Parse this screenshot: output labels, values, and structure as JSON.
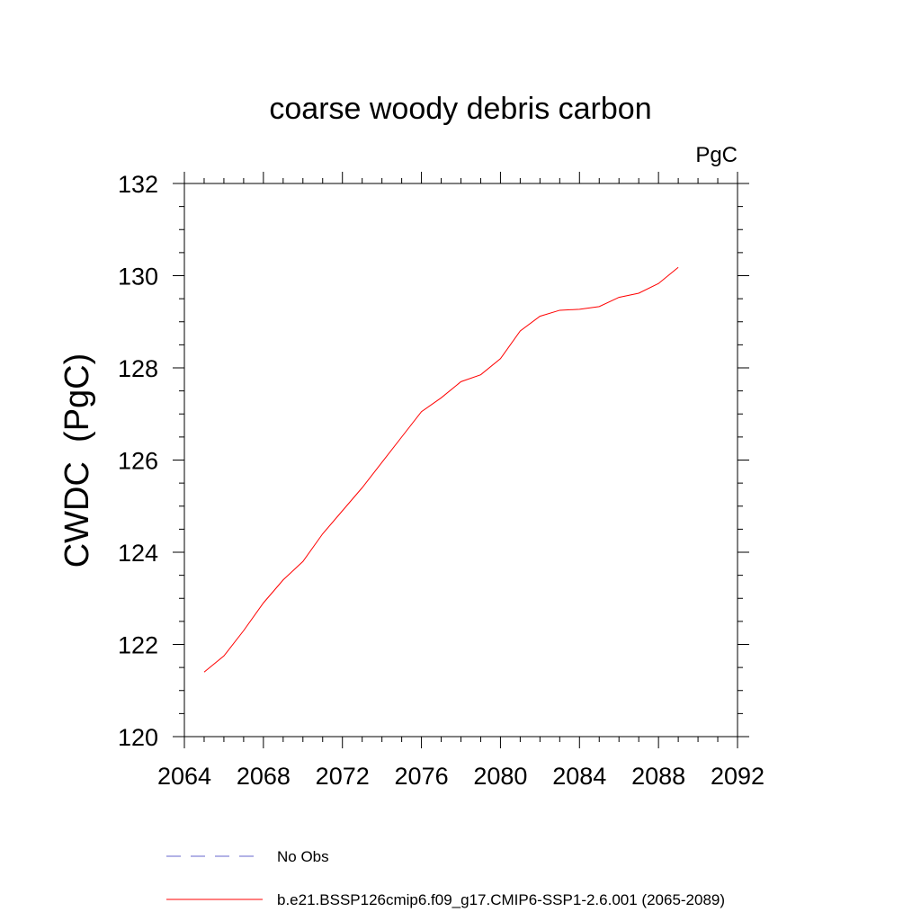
{
  "chart_data": {
    "type": "line",
    "title": "coarse woody debris carbon",
    "units_label": "PgC",
    "xlabel": "",
    "ylabel": "CWDC  (PgC)",
    "xlim": [
      2064,
      2092
    ],
    "ylim": [
      120,
      132
    ],
    "x_ticks": [
      2064,
      2068,
      2072,
      2076,
      2080,
      2084,
      2088,
      2092
    ],
    "y_ticks": [
      120,
      122,
      124,
      126,
      128,
      130,
      132
    ],
    "x_tick_labels": [
      "2064",
      "2068",
      "2072",
      "2076",
      "2080",
      "2084",
      "2088",
      "2092"
    ],
    "y_tick_labels": [
      "120",
      "122",
      "124",
      "126",
      "128",
      "130",
      "132"
    ],
    "grid": false,
    "legend_position": "bottom",
    "series": [
      {
        "name": "b.e21.BSSP126cmip6.f09_g17.CMIP6-SSP1-2.6.001 (2065-2089)",
        "color": "#ff0000",
        "style": "solid",
        "x": [
          2065,
          2066,
          2067,
          2068,
          2069,
          2070,
          2071,
          2072,
          2073,
          2074,
          2075,
          2076,
          2077,
          2078,
          2079,
          2080,
          2081,
          2082,
          2083,
          2084,
          2085,
          2086,
          2087,
          2088,
          2089
        ],
        "y": [
          121.4,
          121.75,
          122.3,
          122.9,
          123.4,
          123.8,
          124.4,
          124.9,
          125.4,
          125.95,
          126.5,
          127.05,
          127.35,
          127.7,
          127.85,
          128.2,
          128.8,
          129.12,
          129.25,
          129.27,
          129.33,
          129.53,
          129.62,
          129.83,
          130.18
        ]
      },
      {
        "name": "No Obs",
        "color": "#6666cc",
        "style": "dashed",
        "x": [],
        "y": []
      }
    ]
  }
}
